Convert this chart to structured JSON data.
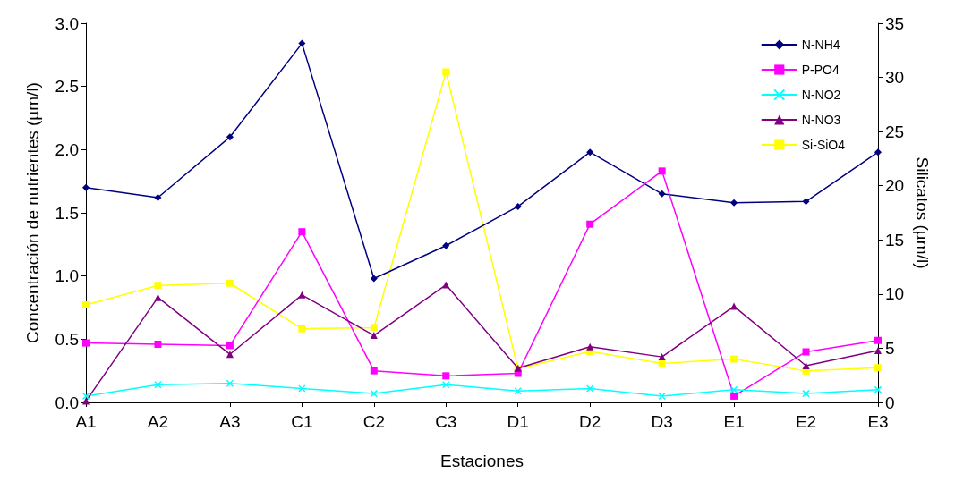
{
  "chart_data": {
    "type": "line",
    "xlabel": "Estaciones",
    "ylabel": "Concentración de nutrientes (µm/l)",
    "y2label": "Silicatos (µm/l)",
    "categories": [
      "A1",
      "A2",
      "A3",
      "C1",
      "C2",
      "C3",
      "D1",
      "D2",
      "D3",
      "E1",
      "E2",
      "E3"
    ],
    "ylim": [
      0,
      3
    ],
    "yticks": [
      {
        "value": 0,
        "label": "0.0"
      },
      {
        "value": 0.5,
        "label": "0.5"
      },
      {
        "value": 1,
        "label": "1.0"
      },
      {
        "value": 1.5,
        "label": "1.5"
      },
      {
        "value": 2,
        "label": "2.0"
      },
      {
        "value": 2.5,
        "label": "2.5"
      },
      {
        "value": 3,
        "label": "3.0"
      }
    ],
    "y2lim": [
      0,
      35
    ],
    "y2ticks": [
      0,
      5,
      10,
      15,
      20,
      25,
      30,
      35
    ],
    "grid": false,
    "legend": "top right",
    "line_style": "solid",
    "series": [
      {
        "name": "N-NH4",
        "color": "#000080",
        "marker": "diamond",
        "values": [
          1.7,
          1.62,
          2.1,
          2.84,
          0.98,
          1.24,
          1.55,
          1.98,
          1.65,
          1.58,
          1.59,
          1.98
        ]
      },
      {
        "name": "P-PO4",
        "color": "#ff00ff",
        "marker": "square",
        "values": [
          0.47,
          0.46,
          0.45,
          1.35,
          0.25,
          0.21,
          0.23,
          1.41,
          1.83,
          0.05,
          0.4,
          0.49
        ]
      },
      {
        "name": "N-NO2",
        "color": "#00ffff",
        "marker": "cross",
        "values": [
          0.05,
          0.14,
          0.15,
          0.11,
          0.07,
          0.14,
          0.09,
          0.11,
          0.05,
          0.1,
          0.07,
          0.1
        ]
      },
      {
        "name": "N-NO3",
        "color": "#800080",
        "marker": "triangle",
        "values": [
          0.01,
          0.83,
          0.38,
          0.85,
          0.53,
          0.93,
          0.27,
          0.44,
          0.36,
          0.76,
          0.29,
          0.41
        ]
      },
      {
        "name": "Si-SiO4",
        "color": "#ffff00",
        "marker": "square",
        "axis": "y2",
        "values": [
          9.0,
          10.8,
          11.0,
          6.8,
          6.9,
          30.5,
          3.1,
          4.7,
          3.6,
          4.0,
          2.9,
          3.2
        ]
      }
    ]
  }
}
